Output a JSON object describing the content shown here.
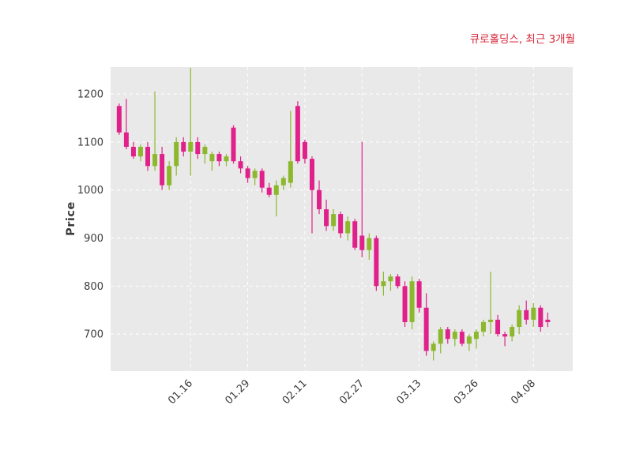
{
  "chart_data": {
    "type": "candlestick",
    "title": "큐로홀딩스, 최근 3개월",
    "title_color": "#d62839",
    "ylabel": "Price",
    "up_color": "#8db82e",
    "down_color": "#e0218a",
    "plot_bg": "#e9e9e9",
    "grid": true,
    "grid_color": "#ffffff",
    "grid_style": "dashed",
    "legend": "none",
    "xlim": [
      -1.2,
      63.5
    ],
    "ylim": [
      623,
      1256
    ],
    "y_ticks": [
      700,
      800,
      900,
      1000,
      1100,
      1200
    ],
    "x_ticks": [
      {
        "index": 10,
        "label": "01.16"
      },
      {
        "index": 18,
        "label": "01.29"
      },
      {
        "index": 26,
        "label": "02.11"
      },
      {
        "index": 34,
        "label": "02.27"
      },
      {
        "index": 42,
        "label": "03.13"
      },
      {
        "index": 50,
        "label": "03.26"
      },
      {
        "index": 58,
        "label": "04.08"
      }
    ],
    "ohlc_format": [
      "open",
      "high",
      "low",
      "close"
    ],
    "ohlc": [
      [
        1175,
        1180,
        1115,
        1120
      ],
      [
        1120,
        1190,
        1085,
        1090
      ],
      [
        1090,
        1100,
        1065,
        1070
      ],
      [
        1070,
        1095,
        1060,
        1090
      ],
      [
        1090,
        1100,
        1040,
        1050
      ],
      [
        1050,
        1205,
        1040,
        1075
      ],
      [
        1075,
        1090,
        1000,
        1010
      ],
      [
        1010,
        1060,
        1000,
        1050
      ],
      [
        1050,
        1110,
        1030,
        1100
      ],
      [
        1100,
        1110,
        1070,
        1080
      ],
      [
        1080,
        1255,
        1030,
        1100
      ],
      [
        1100,
        1110,
        1065,
        1075
      ],
      [
        1075,
        1095,
        1055,
        1090
      ],
      [
        1060,
        1080,
        1040,
        1075
      ],
      [
        1075,
        1080,
        1050,
        1060
      ],
      [
        1060,
        1075,
        1050,
        1070
      ],
      [
        1130,
        1135,
        1055,
        1060
      ],
      [
        1060,
        1070,
        1035,
        1045
      ],
      [
        1045,
        1050,
        1015,
        1025
      ],
      [
        1025,
        1045,
        1010,
        1040
      ],
      [
        1040,
        1045,
        995,
        1005
      ],
      [
        1005,
        1015,
        985,
        990
      ],
      [
        990,
        1020,
        945,
        1010
      ],
      [
        1010,
        1030,
        1000,
        1025
      ],
      [
        1015,
        1165,
        1005,
        1060
      ],
      [
        1175,
        1185,
        1055,
        1060
      ],
      [
        1100,
        1105,
        1055,
        1065
      ],
      [
        1065,
        1070,
        910,
        1000
      ],
      [
        1000,
        1020,
        950,
        960
      ],
      [
        960,
        980,
        915,
        925
      ],
      [
        925,
        960,
        915,
        950
      ],
      [
        950,
        955,
        900,
        910
      ],
      [
        910,
        945,
        895,
        935
      ],
      [
        935,
        940,
        875,
        880
      ],
      [
        905,
        1100,
        860,
        875
      ],
      [
        875,
        910,
        855,
        900
      ],
      [
        900,
        905,
        790,
        800
      ],
      [
        800,
        830,
        780,
        810
      ],
      [
        810,
        825,
        790,
        820
      ],
      [
        820,
        825,
        795,
        800
      ],
      [
        800,
        810,
        715,
        725
      ],
      [
        725,
        820,
        710,
        810
      ],
      [
        810,
        815,
        745,
        755
      ],
      [
        755,
        785,
        655,
        665
      ],
      [
        665,
        685,
        645,
        680
      ],
      [
        680,
        715,
        660,
        710
      ],
      [
        710,
        715,
        680,
        690
      ],
      [
        690,
        710,
        675,
        705
      ],
      [
        705,
        710,
        675,
        680
      ],
      [
        680,
        700,
        665,
        695
      ],
      [
        690,
        710,
        670,
        705
      ],
      [
        705,
        730,
        695,
        725
      ],
      [
        725,
        830,
        700,
        730
      ],
      [
        730,
        740,
        695,
        700
      ],
      [
        700,
        705,
        675,
        695
      ],
      [
        695,
        720,
        685,
        715
      ],
      [
        715,
        760,
        700,
        750
      ],
      [
        750,
        770,
        720,
        730
      ],
      [
        730,
        765,
        715,
        755
      ],
      [
        755,
        760,
        705,
        715
      ],
      [
        730,
        745,
        715,
        725
      ]
    ]
  }
}
